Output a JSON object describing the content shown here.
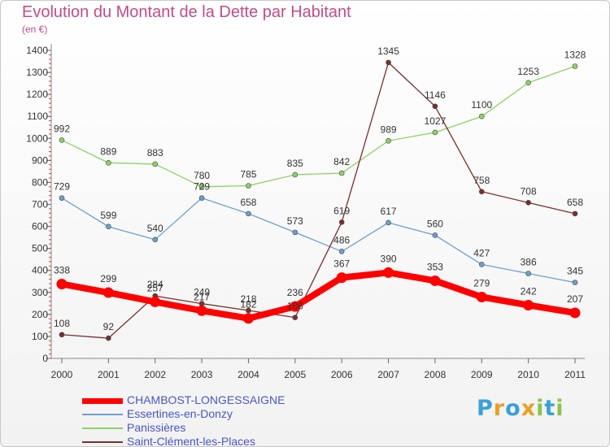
{
  "header": {
    "title": "Evolution du Montant de la Dette par Habitant",
    "unit": "(en €)"
  },
  "brand": {
    "letters": [
      "P",
      "r",
      "o",
      "x",
      "i",
      "t",
      "i"
    ],
    "colors": [
      "#3aa0d8",
      "#e8a020",
      "#3aa0d8",
      "#e8a020",
      "#8bc34a",
      "#3aa0d8",
      "#8bc34a"
    ]
  },
  "chart_data": {
    "type": "line",
    "x": [
      "2000",
      "2001",
      "2002",
      "2003",
      "2004",
      "2005",
      "2006",
      "2007",
      "2008",
      "2009",
      "2010",
      "2011"
    ],
    "ylim": [
      0,
      1400
    ],
    "yticks": [
      0,
      100,
      200,
      300,
      400,
      500,
      600,
      700,
      800,
      900,
      1000,
      1100,
      1200,
      1300,
      1400
    ],
    "grid": false,
    "legend_position": "bottom-left",
    "series": [
      {
        "name": "Essertines-en-Donzy",
        "color": "#6ea0cc",
        "values": [
          729,
          599,
          540,
          729,
          658,
          573,
          486,
          617,
          560,
          427,
          386,
          345
        ]
      },
      {
        "name": "Panissières",
        "color": "#8fd166",
        "values": [
          992,
          889,
          883,
          780,
          785,
          835,
          842,
          989,
          1027,
          1100,
          1253,
          1328
        ]
      },
      {
        "name": "Saint-Clément-les-Places",
        "color": "#7a2f2f",
        "values": [
          108,
          92,
          284,
          249,
          218,
          186,
          619,
          1345,
          1146,
          758,
          708,
          658
        ]
      },
      {
        "name": "CHAMBOST-LONGESSAIGNE",
        "color": "#ff0000",
        "values": [
          338,
          299,
          257,
          217,
          182,
          236,
          367,
          390,
          353,
          279,
          242,
          207
        ]
      }
    ]
  }
}
